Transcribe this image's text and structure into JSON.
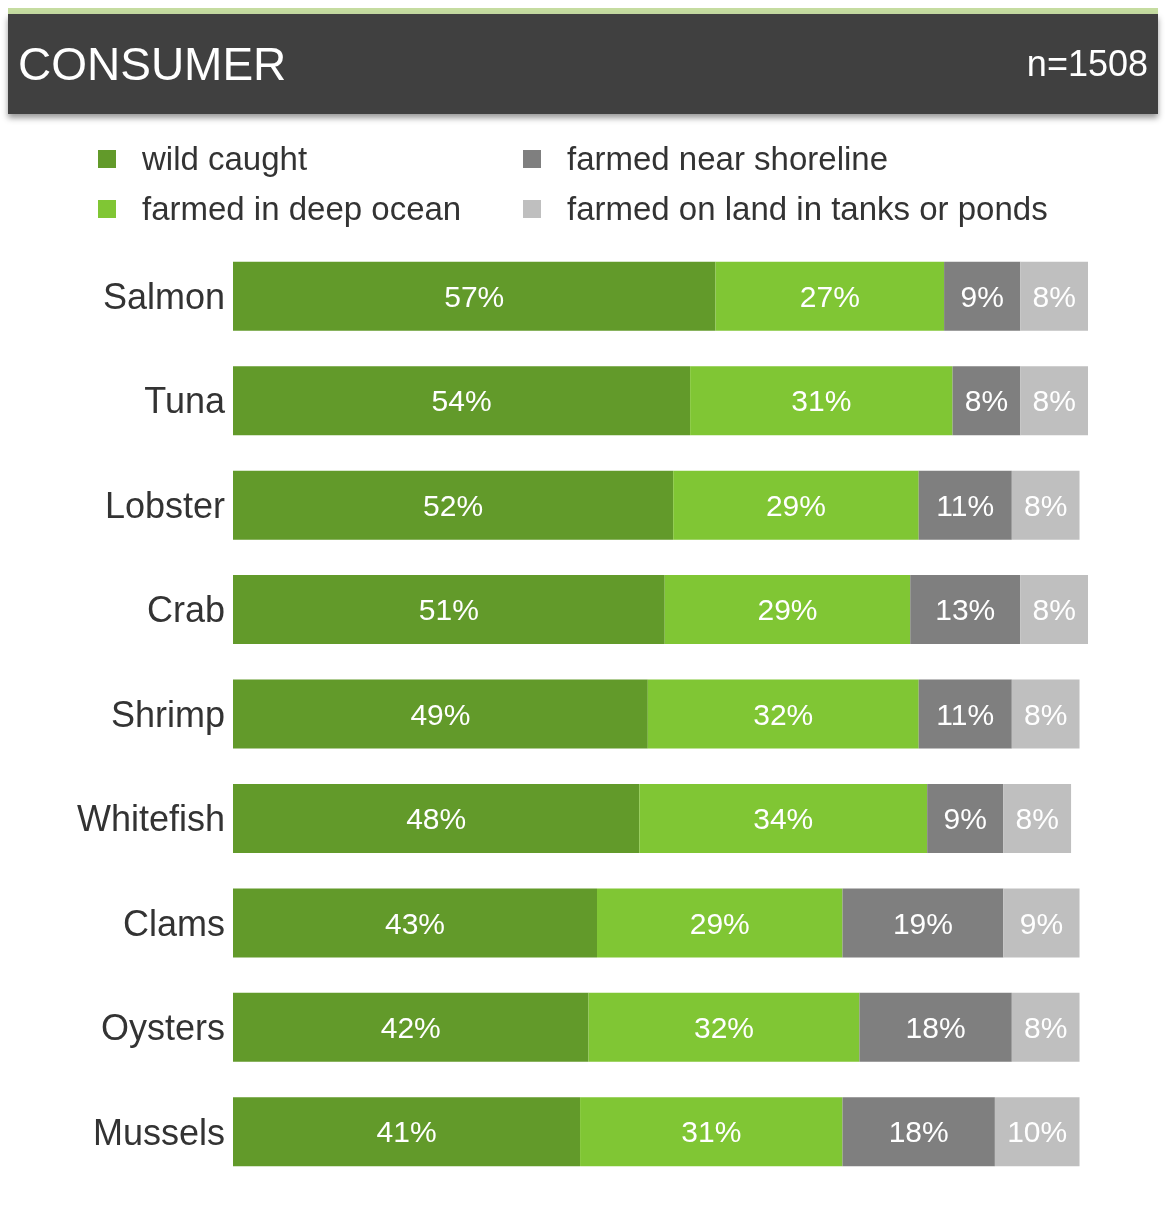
{
  "chart_data": {
    "type": "bar",
    "orientation": "horizontal",
    "stacked": true,
    "tick_labels": "y",
    "legend": "top",
    "title": "CONSUMER",
    "subtitle": "n=1508",
    "categories": [
      "Salmon",
      "Tuna",
      "Lobster",
      "Crab",
      "Shrimp",
      "Whitefish",
      "Clams",
      "Oysters",
      "Mussels"
    ],
    "series": [
      {
        "name": "wild caught",
        "color": "#629a2a",
        "values": [
          57,
          54,
          52,
          51,
          49,
          48,
          43,
          42,
          41
        ],
        "value_labels": [
          "57%",
          "54%",
          "52%",
          "51%",
          "49%",
          "48%",
          "43%",
          "42%",
          "41%"
        ]
      },
      {
        "name": "farmed in deep ocean",
        "color": "#80c634",
        "values": [
          27,
          31,
          29,
          29,
          32,
          34,
          29,
          32,
          31
        ],
        "value_labels": [
          "27%",
          "31%",
          "29%",
          "29%",
          "32%",
          "34%",
          "29%",
          "32%",
          "31%"
        ]
      },
      {
        "name": "farmed near shoreline",
        "color": "#7f7f7f",
        "values": [
          9,
          8,
          11,
          13,
          11,
          9,
          19,
          18,
          18
        ],
        "value_labels": [
          "9%",
          "8%",
          "11%",
          "13%",
          "11%",
          "9%",
          "19%",
          "18%",
          "18%"
        ]
      },
      {
        "name": "farmed on land in tanks or ponds",
        "color": "#bfbfbf",
        "values": [
          8,
          8,
          8,
          8,
          8,
          8,
          9,
          8,
          10
        ],
        "value_labels": [
          "8%",
          "8%",
          "8%",
          "8%",
          "8%",
          "8%",
          "9%",
          "8%",
          "10%"
        ]
      }
    ]
  }
}
